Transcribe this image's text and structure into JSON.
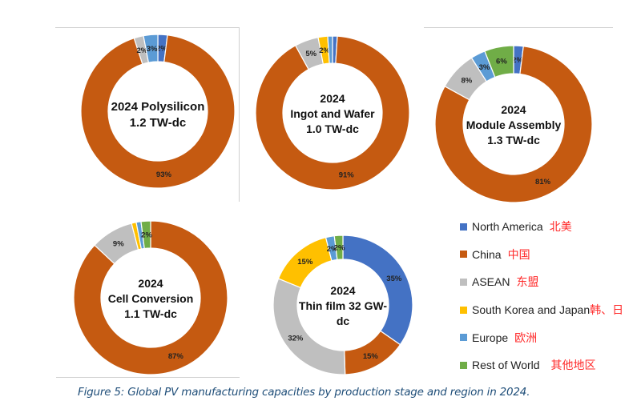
{
  "chart_data": {
    "type": "pie",
    "variant": "donut",
    "legend_position": "bottom-right",
    "regions": [
      {
        "key": "north_america",
        "name": "North America",
        "name_cn": "北美",
        "color": "#4472C4"
      },
      {
        "key": "china",
        "name": "China",
        "name_cn": "中国",
        "color": "#C55A11"
      },
      {
        "key": "asean",
        "name": "ASEAN",
        "name_cn": "东盟",
        "color": "#BFBFBF"
      },
      {
        "key": "sk_japan",
        "name": "South Korea and Japan",
        "name_cn": "韩、日",
        "color": "#FFC000"
      },
      {
        "key": "europe",
        "name": "Europe",
        "name_cn": "欧洲",
        "color": "#5B9BD5"
      },
      {
        "key": "rest_of_world",
        "name": "Rest of World",
        "name_cn": "其他地区",
        "color": "#70AD47"
      }
    ],
    "charts": [
      {
        "id": "polysilicon",
        "title_lines": [
          "2024 Polysilicon",
          "1.2 TW-dc"
        ],
        "capacity": "1.2 TW-dc",
        "values": {
          "north_america": 2,
          "china": 93,
          "asean": 2,
          "sk_japan": 0,
          "europe": 3,
          "rest_of_world": 0
        },
        "labels": {
          "north_america": "2%",
          "china": "93%",
          "asean": "2%",
          "europe": "3%"
        }
      },
      {
        "id": "ingot-wafer",
        "title_lines": [
          "2024",
          "Ingot and Wafer",
          "1.0 TW-dc"
        ],
        "capacity": "1.0 TW-dc",
        "values": {
          "north_america": 1,
          "china": 91,
          "asean": 5,
          "sk_japan": 2,
          "europe": 1,
          "rest_of_world": 0
        },
        "labels": {
          "china": "91%",
          "asean": "5%",
          "sk_japan": "2%"
        }
      },
      {
        "id": "module-assembly",
        "title_lines": [
          "2024",
          "Module Assembly",
          "1.3 TW-dc"
        ],
        "capacity": "1.3 TW-dc",
        "values": {
          "north_america": 2,
          "china": 81,
          "asean": 8,
          "sk_japan": 0,
          "europe": 3,
          "rest_of_world": 6
        },
        "labels": {
          "north_america": "2%",
          "china": "81%",
          "asean": "8%",
          "europe": "3%",
          "rest_of_world": "6%"
        }
      },
      {
        "id": "cell-conversion",
        "title_lines": [
          "2024",
          "Cell Conversion",
          "1.1 TW-dc"
        ],
        "capacity": "1.1 TW-dc",
        "values": {
          "north_america": 0,
          "china": 87,
          "asean": 9,
          "sk_japan": 1,
          "europe": 1,
          "rest_of_world": 2
        },
        "labels": {
          "china": "87%",
          "asean": "9%",
          "rest_of_world": "2%"
        }
      },
      {
        "id": "thin-film",
        "title_lines": [
          "2024",
          "Thin film 32 GW-",
          "dc"
        ],
        "capacity": "32 GW-dc",
        "values": {
          "north_america": 35,
          "china": 15,
          "asean": 32,
          "sk_japan": 15,
          "europe": 2,
          "rest_of_world": 2
        },
        "labels": {
          "north_america": "35%",
          "china": "15%",
          "asean": "32%",
          "sk_japan": "15%",
          "europe": "2%",
          "rest_of_world": "2%"
        }
      }
    ]
  },
  "caption": "Figure 5: Global PV manufacturing capacities by production stage and region in 2024."
}
